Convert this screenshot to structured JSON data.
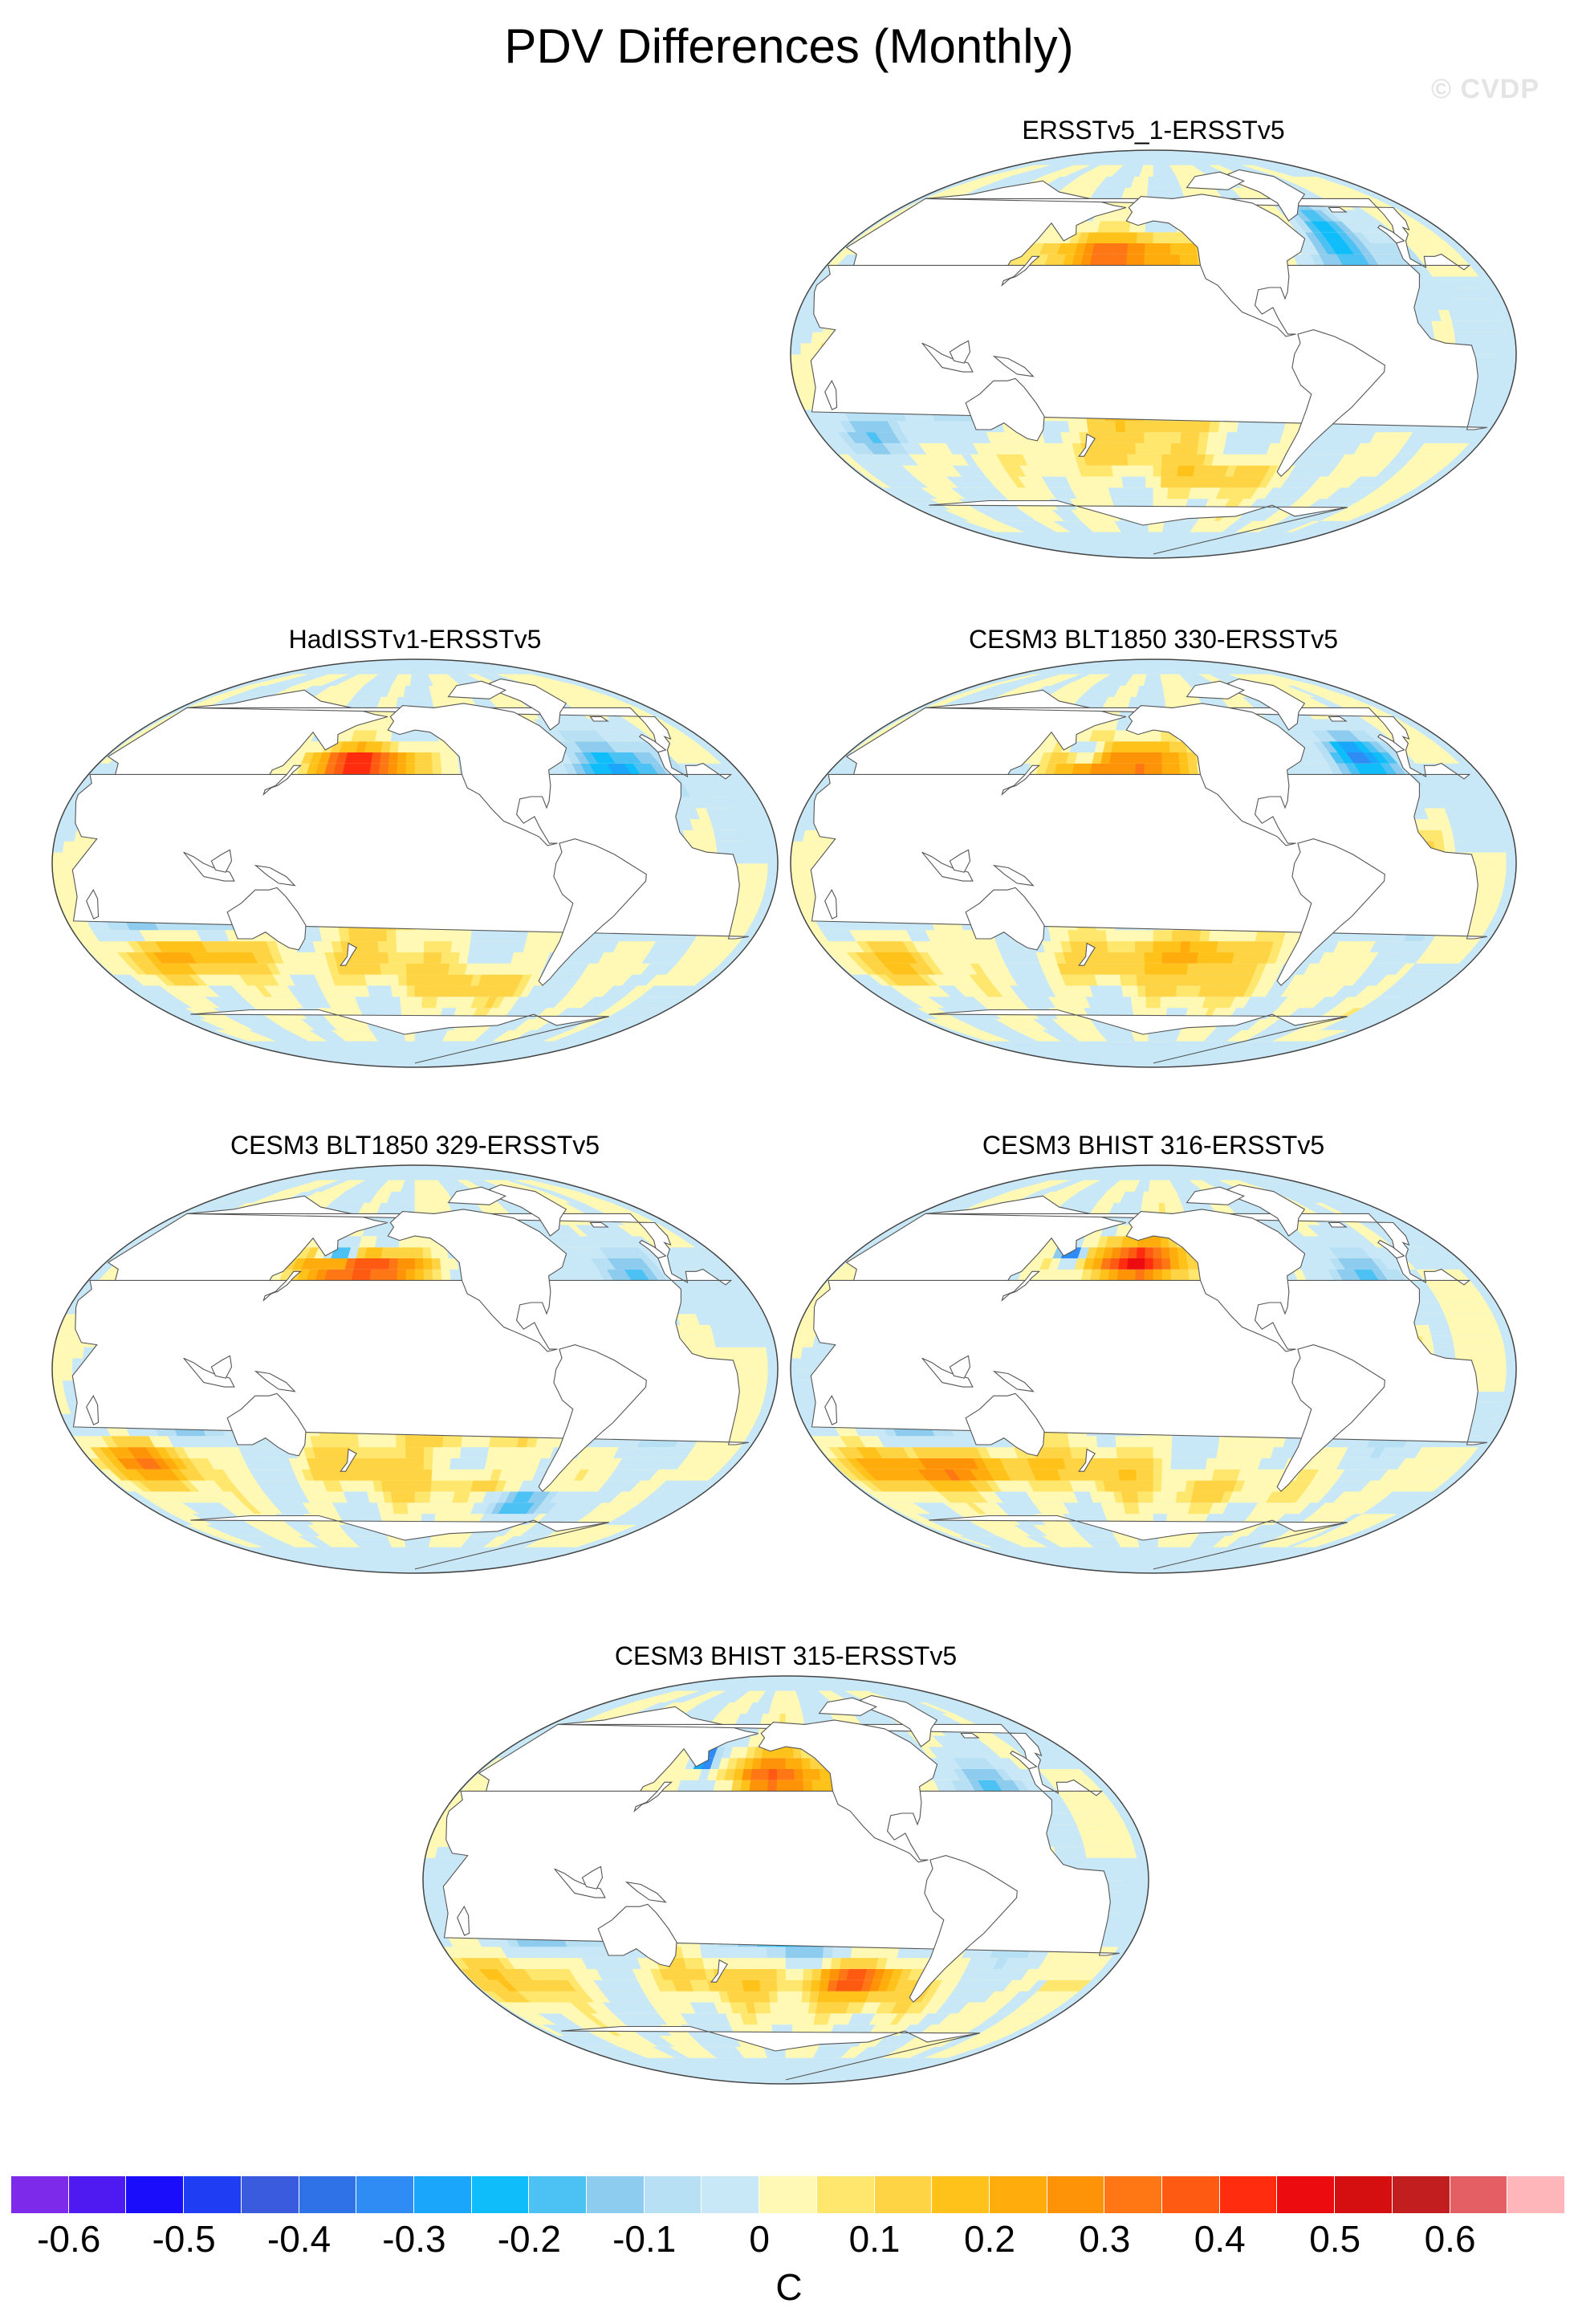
{
  "figure": {
    "title": "PDV Differences (Monthly)",
    "watermark": "© CVDP"
  },
  "panels": [
    {
      "title": "ERSSTv5_1-ERSSTv5",
      "variant": 0
    },
    {
      "title": "HadISSTv1-ERSSTv5",
      "variant": 1
    },
    {
      "title": "CESM3 BLT1850 330-ERSSTv5",
      "variant": 2
    },
    {
      "title": "CESM3 BLT1850 329-ERSSTv5",
      "variant": 3
    },
    {
      "title": "CESM3 BHIST 316-ERSSTv5",
      "variant": 4
    },
    {
      "title": "CESM3 BHIST 315-ERSSTv5",
      "variant": 5
    }
  ],
  "colorbar": {
    "units": "C",
    "colors": [
      "#7d2aeb",
      "#4f19f2",
      "#1a0dfb",
      "#1f3ef3",
      "#3b5bde",
      "#2f72e8",
      "#2e8cf4",
      "#1aa6fb",
      "#10bdfb",
      "#4cc2f4",
      "#8dccee",
      "#b8e0f5",
      "#c9e8f7",
      "#fff9b5",
      "#ffe66d",
      "#ffd444",
      "#ffc21a",
      "#ffac0c",
      "#ff9308",
      "#ff7614",
      "#ff5a12",
      "#ff2d0e",
      "#ec0c10",
      "#d50f0f",
      "#c21d1f",
      "#e45f63",
      "#ffb6bb"
    ],
    "tick_labels": [
      "-0.6",
      "-0.5",
      "-0.4",
      "-0.3",
      "-0.2",
      "-0.1",
      "0",
      "0.1",
      "0.2",
      "0.3",
      "0.4",
      "0.5",
      "0.6"
    ]
  }
}
